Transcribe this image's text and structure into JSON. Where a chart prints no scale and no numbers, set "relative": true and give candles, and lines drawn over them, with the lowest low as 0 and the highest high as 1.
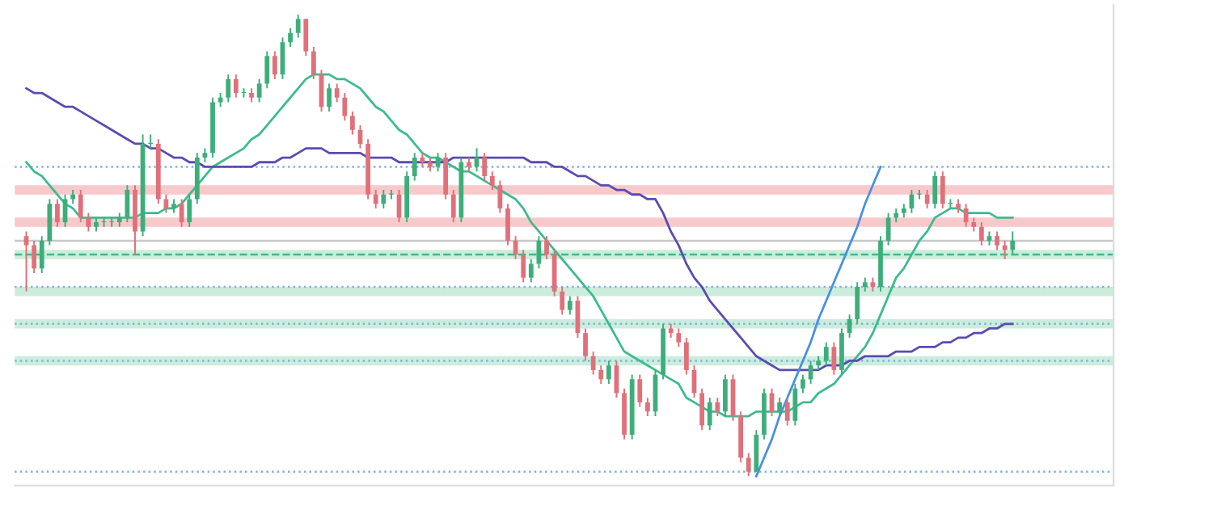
{
  "chart_data": {
    "type": "candlestick",
    "relative": true,
    "grid": false,
    "categories": [
      null,
      null,
      null,
      null,
      null,
      null,
      null,
      null,
      null,
      null,
      null,
      null,
      null,
      null,
      null,
      null,
      null,
      null,
      null,
      null,
      null,
      null,
      null,
      null,
      null,
      null,
      null,
      null,
      null,
      null,
      null,
      null,
      null,
      null,
      null,
      null,
      null,
      null,
      null,
      null,
      null,
      null,
      null,
      null,
      null,
      null,
      null,
      null,
      null,
      null,
      null,
      null,
      null,
      null,
      null,
      null,
      null,
      null,
      null,
      null,
      null,
      null,
      null,
      null,
      null,
      null,
      null,
      null,
      null,
      null,
      null,
      null,
      null,
      null,
      null,
      null,
      null,
      null,
      null,
      null,
      null,
      null,
      null,
      null,
      null,
      null,
      null,
      null,
      null,
      null,
      null,
      null,
      null,
      null,
      null,
      null,
      null,
      null,
      null,
      null,
      null,
      null,
      null,
      null,
      null,
      null,
      null,
      null,
      null,
      null,
      null,
      null,
      null,
      null,
      null,
      null,
      null,
      null,
      null,
      null,
      null,
      null,
      null,
      null,
      null,
      null,
      null,
      null
    ],
    "ohlc": [
      [
        0.52,
        0.53,
        0.4,
        0.5
      ],
      [
        0.5,
        0.51,
        0.44,
        0.45
      ],
      [
        0.45,
        0.52,
        0.44,
        0.51
      ],
      [
        0.51,
        0.6,
        0.5,
        0.59
      ],
      [
        0.59,
        0.6,
        0.54,
        0.55
      ],
      [
        0.55,
        0.61,
        0.54,
        0.6
      ],
      [
        0.6,
        0.62,
        0.59,
        0.61
      ],
      [
        0.61,
        0.62,
        0.55,
        0.56
      ],
      [
        0.56,
        0.57,
        0.53,
        0.54
      ],
      [
        0.54,
        0.56,
        0.53,
        0.55
      ],
      [
        0.55,
        0.56,
        0.54,
        0.55
      ],
      [
        0.55,
        0.56,
        0.54,
        0.55
      ],
      [
        0.55,
        0.57,
        0.54,
        0.56
      ],
      [
        0.56,
        0.63,
        0.55,
        0.62
      ],
      [
        0.62,
        0.63,
        0.48,
        0.53
      ],
      [
        0.53,
        0.74,
        0.52,
        0.72
      ],
      [
        0.72,
        0.74,
        0.71,
        0.72
      ],
      [
        0.72,
        0.73,
        0.59,
        0.6
      ],
      [
        0.6,
        0.61,
        0.57,
        0.58
      ],
      [
        0.58,
        0.6,
        0.57,
        0.59
      ],
      [
        0.59,
        0.6,
        0.54,
        0.55
      ],
      [
        0.55,
        0.61,
        0.54,
        0.6
      ],
      [
        0.6,
        0.7,
        0.59,
        0.69
      ],
      [
        0.69,
        0.71,
        0.68,
        0.7
      ],
      [
        0.7,
        0.82,
        0.69,
        0.81
      ],
      [
        0.81,
        0.83,
        0.8,
        0.82
      ],
      [
        0.82,
        0.87,
        0.81,
        0.86
      ],
      [
        0.86,
        0.87,
        0.82,
        0.83
      ],
      [
        0.83,
        0.84,
        0.82,
        0.83
      ],
      [
        0.83,
        0.84,
        0.81,
        0.82
      ],
      [
        0.82,
        0.86,
        0.81,
        0.85
      ],
      [
        0.85,
        0.92,
        0.84,
        0.91
      ],
      [
        0.91,
        0.92,
        0.86,
        0.87
      ],
      [
        0.87,
        0.95,
        0.86,
        0.94
      ],
      [
        0.94,
        0.97,
        0.93,
        0.96
      ],
      [
        0.96,
        1.0,
        0.95,
        0.99
      ],
      [
        0.99,
        0.99,
        0.91,
        0.92
      ],
      [
        0.92,
        0.93,
        0.86,
        0.87
      ],
      [
        0.87,
        0.88,
        0.79,
        0.8
      ],
      [
        0.8,
        0.85,
        0.79,
        0.84
      ],
      [
        0.84,
        0.85,
        0.81,
        0.82
      ],
      [
        0.82,
        0.83,
        0.77,
        0.78
      ],
      [
        0.78,
        0.79,
        0.74,
        0.75
      ],
      [
        0.75,
        0.76,
        0.71,
        0.72
      ],
      [
        0.72,
        0.73,
        0.6,
        0.61
      ],
      [
        0.61,
        0.62,
        0.58,
        0.59
      ],
      [
        0.59,
        0.62,
        0.58,
        0.61
      ],
      [
        0.61,
        0.62,
        0.6,
        0.61
      ],
      [
        0.61,
        0.62,
        0.55,
        0.56
      ],
      [
        0.56,
        0.66,
        0.55,
        0.65
      ],
      [
        0.65,
        0.7,
        0.64,
        0.69
      ],
      [
        0.69,
        0.7,
        0.67,
        0.68
      ],
      [
        0.68,
        0.69,
        0.66,
        0.67
      ],
      [
        0.67,
        0.7,
        0.66,
        0.69
      ],
      [
        0.69,
        0.7,
        0.6,
        0.61
      ],
      [
        0.61,
        0.62,
        0.55,
        0.56
      ],
      [
        0.56,
        0.69,
        0.55,
        0.68
      ],
      [
        0.68,
        0.69,
        0.66,
        0.67
      ],
      [
        0.67,
        0.71,
        0.66,
        0.69
      ],
      [
        0.69,
        0.7,
        0.64,
        0.65
      ],
      [
        0.65,
        0.66,
        0.62,
        0.63
      ],
      [
        0.63,
        0.64,
        0.57,
        0.58
      ],
      [
        0.58,
        0.59,
        0.5,
        0.51
      ],
      [
        0.51,
        0.52,
        0.47,
        0.48
      ],
      [
        0.48,
        0.49,
        0.42,
        0.43
      ],
      [
        0.43,
        0.47,
        0.42,
        0.46
      ],
      [
        0.46,
        0.52,
        0.45,
        0.51
      ],
      [
        0.51,
        0.52,
        0.47,
        0.48
      ],
      [
        0.48,
        0.49,
        0.39,
        0.4
      ],
      [
        0.4,
        0.41,
        0.35,
        0.36
      ],
      [
        0.36,
        0.39,
        0.35,
        0.38
      ],
      [
        0.38,
        0.39,
        0.3,
        0.31
      ],
      [
        0.31,
        0.32,
        0.25,
        0.26
      ],
      [
        0.26,
        0.27,
        0.22,
        0.23
      ],
      [
        0.23,
        0.24,
        0.2,
        0.21
      ],
      [
        0.21,
        0.25,
        0.2,
        0.24
      ],
      [
        0.24,
        0.25,
        0.17,
        0.18
      ],
      [
        0.18,
        0.19,
        0.08,
        0.09
      ],
      [
        0.09,
        0.22,
        0.08,
        0.21
      ],
      [
        0.21,
        0.22,
        0.15,
        0.16
      ],
      [
        0.16,
        0.17,
        0.13,
        0.14
      ],
      [
        0.14,
        0.23,
        0.13,
        0.22
      ],
      [
        0.22,
        0.33,
        0.21,
        0.32
      ],
      [
        0.32,
        0.33,
        0.3,
        0.31
      ],
      [
        0.31,
        0.32,
        0.28,
        0.29
      ],
      [
        0.29,
        0.3,
        0.22,
        0.23
      ],
      [
        0.23,
        0.24,
        0.17,
        0.18
      ],
      [
        0.18,
        0.19,
        0.1,
        0.11
      ],
      [
        0.11,
        0.17,
        0.1,
        0.16
      ],
      [
        0.16,
        0.17,
        0.13,
        0.14
      ],
      [
        0.14,
        0.22,
        0.13,
        0.21
      ],
      [
        0.21,
        0.22,
        0.12,
        0.13
      ],
      [
        0.13,
        0.14,
        0.03,
        0.04
      ],
      [
        0.04,
        0.05,
        0.0,
        0.01
      ],
      [
        0.01,
        0.1,
        0.01,
        0.09
      ],
      [
        0.09,
        0.19,
        0.08,
        0.18
      ],
      [
        0.18,
        0.19,
        0.13,
        0.14
      ],
      [
        0.14,
        0.17,
        0.13,
        0.16
      ],
      [
        0.16,
        0.17,
        0.11,
        0.12
      ],
      [
        0.12,
        0.2,
        0.11,
        0.19
      ],
      [
        0.19,
        0.22,
        0.18,
        0.21
      ],
      [
        0.21,
        0.25,
        0.2,
        0.24
      ],
      [
        0.24,
        0.26,
        0.23,
        0.25
      ],
      [
        0.25,
        0.29,
        0.24,
        0.28
      ],
      [
        0.28,
        0.29,
        0.22,
        0.23
      ],
      [
        0.23,
        0.32,
        0.22,
        0.31
      ],
      [
        0.31,
        0.35,
        0.3,
        0.34
      ],
      [
        0.34,
        0.42,
        0.33,
        0.41
      ],
      [
        0.41,
        0.43,
        0.4,
        0.42
      ],
      [
        0.42,
        0.43,
        0.4,
        0.41
      ],
      [
        0.41,
        0.52,
        0.4,
        0.51
      ],
      [
        0.51,
        0.57,
        0.5,
        0.56
      ],
      [
        0.56,
        0.58,
        0.55,
        0.57
      ],
      [
        0.57,
        0.59,
        0.56,
        0.58
      ],
      [
        0.58,
        0.62,
        0.57,
        0.61
      ],
      [
        0.61,
        0.62,
        0.6,
        0.61
      ],
      [
        0.61,
        0.62,
        0.58,
        0.59
      ],
      [
        0.59,
        0.66,
        0.58,
        0.65
      ],
      [
        0.65,
        0.66,
        0.58,
        0.59
      ],
      [
        0.59,
        0.6,
        0.58,
        0.59
      ],
      [
        0.59,
        0.6,
        0.57,
        0.58
      ],
      [
        0.58,
        0.59,
        0.54,
        0.55
      ],
      [
        0.55,
        0.56,
        0.53,
        0.54
      ],
      [
        0.54,
        0.55,
        0.5,
        0.51
      ],
      [
        0.51,
        0.53,
        0.5,
        0.52
      ],
      [
        0.52,
        0.53,
        0.49,
        0.5
      ],
      [
        0.5,
        0.51,
        0.47,
        0.49
      ],
      [
        0.49,
        0.53,
        0.48,
        0.51
      ]
    ],
    "series": [
      {
        "type": "line",
        "color": "#3dbb8f",
        "values": [
          0.68,
          0.66,
          0.65,
          0.63,
          0.61,
          0.59,
          0.58,
          0.56,
          0.56,
          0.56,
          0.56,
          0.56,
          0.56,
          0.56,
          0.56,
          0.57,
          0.57,
          0.57,
          0.58,
          0.58,
          0.59,
          0.61,
          0.63,
          0.65,
          0.67,
          0.68,
          0.69,
          0.7,
          0.71,
          0.73,
          0.74,
          0.76,
          0.78,
          0.8,
          0.82,
          0.84,
          0.86,
          0.87,
          0.87,
          0.87,
          0.86,
          0.86,
          0.85,
          0.84,
          0.82,
          0.8,
          0.79,
          0.77,
          0.75,
          0.74,
          0.72,
          0.7,
          0.69,
          0.69,
          0.68,
          0.67,
          0.66,
          0.66,
          0.65,
          0.64,
          0.63,
          0.62,
          0.61,
          0.6,
          0.58,
          0.55,
          0.53,
          0.51,
          0.49,
          0.47,
          0.45,
          0.43,
          0.41,
          0.39,
          0.36,
          0.33,
          0.3,
          0.27,
          0.26,
          0.25,
          0.24,
          0.23,
          0.22,
          0.21,
          0.2,
          0.17,
          0.16,
          0.15,
          0.14,
          0.14,
          0.13,
          0.13,
          0.13,
          0.13,
          0.14,
          0.14,
          0.14,
          0.14,
          0.14,
          0.15,
          0.16,
          0.16,
          0.18,
          0.19,
          0.2,
          0.22,
          0.24,
          0.26,
          0.28,
          0.31,
          0.35,
          0.39,
          0.43,
          0.45,
          0.48,
          0.51,
          0.53,
          0.56,
          0.57,
          0.58,
          0.58,
          0.57,
          0.57,
          0.57,
          0.57,
          0.56,
          0.56,
          0.56
        ]
      },
      {
        "type": "line",
        "color": "#5b4bb0",
        "values": [
          0.84,
          0.83,
          0.83,
          0.82,
          0.81,
          0.8,
          0.8,
          0.79,
          0.78,
          0.77,
          0.76,
          0.75,
          0.74,
          0.73,
          0.72,
          0.72,
          0.71,
          0.71,
          0.7,
          0.69,
          0.69,
          0.68,
          0.68,
          0.67,
          0.67,
          0.67,
          0.67,
          0.67,
          0.67,
          0.67,
          0.68,
          0.68,
          0.68,
          0.69,
          0.69,
          0.7,
          0.71,
          0.71,
          0.71,
          0.7,
          0.7,
          0.7,
          0.7,
          0.7,
          0.69,
          0.69,
          0.69,
          0.69,
          0.68,
          0.68,
          0.68,
          0.68,
          0.68,
          0.68,
          0.68,
          0.69,
          0.69,
          0.69,
          0.69,
          0.69,
          0.69,
          0.69,
          0.69,
          0.69,
          0.69,
          0.68,
          0.68,
          0.68,
          0.67,
          0.67,
          0.66,
          0.65,
          0.65,
          0.64,
          0.63,
          0.63,
          0.62,
          0.62,
          0.61,
          0.61,
          0.6,
          0.6,
          0.57,
          0.53,
          0.5,
          0.46,
          0.43,
          0.41,
          0.38,
          0.36,
          0.34,
          0.32,
          0.3,
          0.28,
          0.26,
          0.25,
          0.24,
          0.23,
          0.23,
          0.23,
          0.23,
          0.23,
          0.23,
          0.24,
          0.24,
          0.24,
          0.25,
          0.25,
          0.26,
          0.26,
          0.26,
          0.26,
          0.27,
          0.27,
          0.27,
          0.28,
          0.28,
          0.28,
          0.29,
          0.29,
          0.3,
          0.3,
          0.31,
          0.31,
          0.32,
          0.32,
          0.33,
          0.33
        ]
      },
      {
        "type": "line",
        "color": "#4a90e2",
        "values": [
          null,
          null,
          null,
          null,
          null,
          null,
          null,
          null,
          null,
          null,
          null,
          null,
          null,
          null,
          null,
          null,
          null,
          null,
          null,
          null,
          null,
          null,
          null,
          null,
          null,
          null,
          null,
          null,
          null,
          null,
          null,
          null,
          null,
          null,
          null,
          null,
          null,
          null,
          null,
          null,
          null,
          null,
          null,
          null,
          null,
          null,
          null,
          null,
          null,
          null,
          null,
          null,
          null,
          null,
          null,
          null,
          null,
          null,
          null,
          null,
          null,
          null,
          null,
          null,
          null,
          null,
          null,
          null,
          null,
          null,
          null,
          null,
          null,
          null,
          null,
          null,
          null,
          null,
          null,
          null,
          null,
          null,
          null,
          null,
          null,
          null,
          null,
          null,
          null,
          null,
          null,
          null,
          null,
          null,
          0.0,
          0.04,
          0.08,
          0.13,
          0.17,
          0.21,
          0.25,
          0.29,
          0.34,
          0.38,
          0.42,
          0.46,
          0.5,
          0.54,
          0.59,
          0.63,
          0.67,
          null,
          null,
          null,
          null,
          null,
          null,
          null,
          null,
          null,
          null,
          null,
          null,
          null,
          null,
          null,
          null,
          null
        ]
      }
    ],
    "bands": [
      {
        "axis": "y",
        "from": 0.61,
        "to": 0.63,
        "color": "#f6bcbe"
      },
      {
        "axis": "y",
        "from": 0.54,
        "to": 0.56,
        "color": "#f6bcbe"
      },
      {
        "axis": "y",
        "from": 0.47,
        "to": 0.49,
        "color": "#bfe8d2"
      },
      {
        "axis": "y",
        "from": 0.39,
        "to": 0.41,
        "color": "#bfe8d2"
      },
      {
        "axis": "y",
        "from": 0.32,
        "to": 0.34,
        "color": "#bfe8d2"
      },
      {
        "axis": "y",
        "from": 0.24,
        "to": 0.26,
        "color": "#bfe8d2"
      }
    ],
    "ref_lines": [
      {
        "axis": "y",
        "value": 0.51,
        "color": "#c8c8c8",
        "line_style": "solid"
      },
      {
        "axis": "y",
        "value": 0.48,
        "color": "#3dbb8f",
        "line_style": "dashed"
      },
      {
        "axis": "y",
        "value": 0.67,
        "color": "#7fb2e5",
        "line_style": "dotted"
      },
      {
        "axis": "y",
        "value": 0.41,
        "color": "#7fb2e5",
        "line_style": "dotted"
      },
      {
        "axis": "y",
        "value": 0.33,
        "color": "#7fb2e5",
        "line_style": "dotted"
      },
      {
        "axis": "y",
        "value": 0.25,
        "color": "#7fb2e5",
        "line_style": "dotted"
      },
      {
        "axis": "y",
        "value": 0.01,
        "color": "#7fb2e5",
        "line_style": "dotted"
      }
    ]
  }
}
